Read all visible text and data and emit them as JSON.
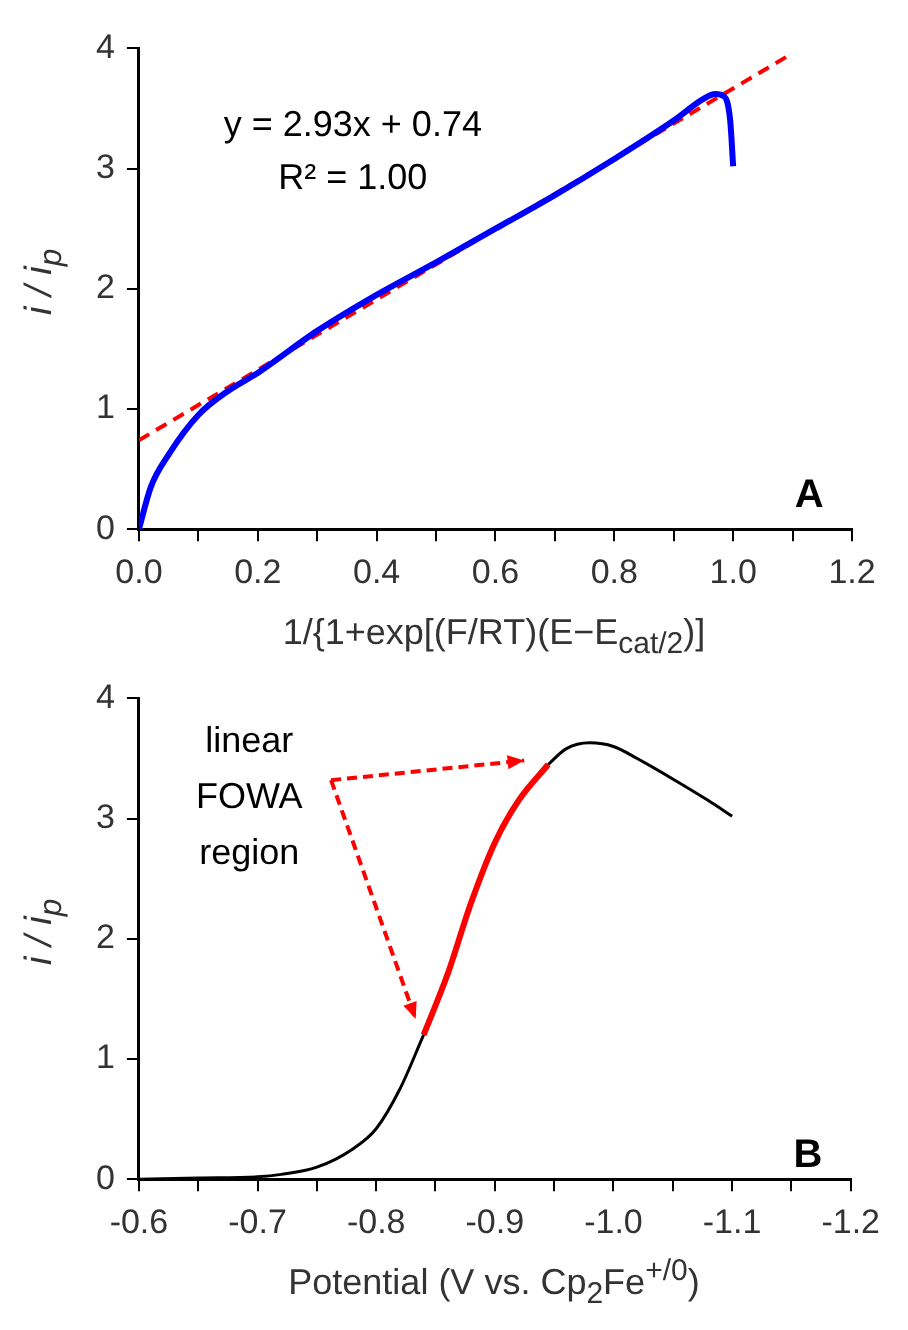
{
  "chart_data": [
    {
      "type": "line",
      "xlabel": "1/{1+exp[(F/RT)(E−E$_{cat/2}$)]",
      "ylabel": "i / i$_{p}$",
      "xlim": [
        0,
        1.2
      ],
      "xticks": [
        {
          "value": 0,
          "label": "0.0"
        },
        {
          "value": 0.1,
          "label": null
        },
        {
          "value": 0.2,
          "label": "0.2"
        },
        {
          "value": 0.3,
          "label": null
        },
        {
          "value": 0.4,
          "label": "0.4"
        },
        {
          "value": 0.5,
          "label": null
        },
        {
          "value": 0.6,
          "label": "0.6"
        },
        {
          "value": 0.7,
          "label": null
        },
        {
          "value": 0.8,
          "label": "0.8"
        },
        {
          "value": 0.9,
          "label": null
        },
        {
          "value": 1,
          "label": "1.0"
        },
        {
          "value": 1.1,
          "label": null
        },
        {
          "value": 1.2,
          "label": "1.2"
        }
      ],
      "ylim": [
        0,
        4
      ],
      "yticks": [
        0,
        1,
        2,
        3,
        4
      ],
      "grid": false,
      "legend": false,
      "annotations": [
        "y = 2.93x + 0.74",
        "R² = 1.00",
        "A"
      ],
      "series": [
        {
          "color": "#0000ff",
          "line_style": "solid",
          "x": [
            0,
            0.02,
            0.05,
            0.1,
            0.15,
            0.2,
            0.3,
            0.4,
            0.5,
            0.6,
            0.7,
            0.8,
            0.9,
            0.95,
            0.97,
            0.985,
            0.995,
            1.0
          ],
          "values": [
            0,
            0.35,
            0.62,
            0.95,
            1.15,
            1.3,
            1.65,
            1.95,
            2.22,
            2.5,
            2.78,
            3.08,
            3.4,
            3.58,
            3.62,
            3.6,
            3.4,
            3.02
          ]
        },
        {
          "color": "#ff0000",
          "line_style": "dashed",
          "x": [
            0,
            1.1
          ],
          "values": [
            0.74,
            3.96
          ]
        }
      ]
    },
    {
      "type": "line",
      "xlabel": "Potential (V vs. Cp$_{2}$Fe$^{+/0}$)",
      "ylabel": "i / i$_{p}$",
      "xlim": [
        -0.6,
        -1.2
      ],
      "xticks": [
        -0.6,
        {
          "value": -0.65,
          "label": null
        },
        -0.7,
        {
          "value": -0.75,
          "label": null
        },
        -0.8,
        {
          "value": -0.85,
          "label": null
        },
        -0.9,
        {
          "value": -0.95,
          "label": null
        },
        {
          "value": -1,
          "label": "-1.0"
        },
        {
          "value": -1.05,
          "label": null
        },
        -1.1,
        {
          "value": -1.15,
          "label": null
        },
        -1.2
      ],
      "ylim": [
        0,
        4
      ],
      "yticks": [
        0,
        1,
        2,
        3,
        4
      ],
      "grid": false,
      "legend": false,
      "annotations": [
        "linear FOWA region",
        "B"
      ],
      "series": [
        {
          "color": "#000000",
          "line_style": "solid",
          "x": [
            -0.6,
            -0.65,
            -0.7,
            -0.72,
            -0.75,
            -0.78,
            -0.8,
            -0.82,
            -0.84
          ],
          "values": [
            0,
            0.01,
            0.02,
            0.04,
            0.1,
            0.25,
            0.42,
            0.75,
            1.2
          ]
        },
        {
          "color": "#ff0000",
          "line_style": "solid",
          "x": [
            -0.84,
            -0.86,
            -0.88,
            -0.9,
            -0.92,
            -0.945
          ],
          "values": [
            1.2,
            1.7,
            2.3,
            2.8,
            3.15,
            3.45
          ]
        },
        {
          "color": "#000000",
          "line_style": "solid",
          "x": [
            -0.945,
            -0.96,
            -0.98,
            -1.0,
            -1.02,
            -1.05,
            -1.08,
            -1.1
          ],
          "values": [
            3.45,
            3.58,
            3.63,
            3.6,
            3.5,
            3.33,
            3.15,
            3.02
          ]
        }
      ]
    }
  ]
}
